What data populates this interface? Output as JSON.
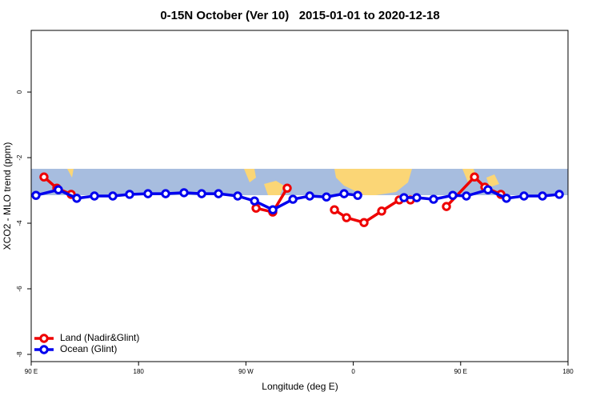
{
  "chart_data": {
    "type": "line",
    "title": "0-15N October (Ver 10)   2015-01-01 to 2020-12-18",
    "xlabel": "Longitude (deg E)",
    "ylabel": "XCO2 - MLO trend (ppm)",
    "xlim": [
      90,
      540
    ],
    "ylim": [
      -8.22,
      1.88
    ],
    "xticks": [
      {
        "value": 90,
        "label": "90 E"
      },
      180,
      {
        "value": 270,
        "label": "90 W"
      },
      {
        "value": 360,
        "label": "0"
      },
      {
        "value": 450,
        "label": "90 E"
      },
      {
        "value": 540,
        "label": "180"
      }
    ],
    "yticks": [
      0,
      -2,
      -4,
      -6,
      -8
    ],
    "legend": "bottom-left",
    "series": [
      {
        "name": "Land (Nadir&Glint)",
        "color": "#ee0000",
        "x": [
          100.7,
          111.5,
          123.5,
          null,
          278.5,
          292.5,
          304.6,
          null,
          344.2,
          354.3,
          369.0,
          383.8,
          398.5,
          407.9,
          null,
          438.1,
          461.6,
          470.3,
          483.7
        ],
        "values": [
          -2.59,
          -2.93,
          -3.12,
          null,
          -3.54,
          -3.66,
          -2.93,
          null,
          -3.59,
          -3.83,
          -3.98,
          -3.63,
          -3.29,
          -3.29,
          null,
          -3.49,
          -2.59,
          -2.9,
          -3.12
        ]
      },
      {
        "name": "Ocean (Glint)",
        "color": "#0000ee",
        "x": [
          94.0,
          112.8,
          128.2,
          143.0,
          158.4,
          172.5,
          187.9,
          202.7,
          218.1,
          232.9,
          247.0,
          263.1,
          277.2,
          292.6,
          309.4,
          323.5,
          337.5,
          352.3,
          363.7,
          null,
          402.5,
          413.2,
          427.3,
          443.4,
          454.8,
          472.9,
          488.4,
          503.1,
          518.6,
          532.7
        ],
        "values": [
          -3.15,
          -2.98,
          -3.24,
          -3.17,
          -3.17,
          -3.12,
          -3.1,
          -3.1,
          -3.07,
          -3.1,
          -3.1,
          -3.17,
          -3.32,
          -3.59,
          -3.27,
          -3.17,
          -3.2,
          -3.1,
          -3.15,
          null,
          -3.22,
          -3.22,
          -3.27,
          -3.15,
          -3.17,
          -2.98,
          -3.24,
          -3.17,
          -3.17,
          -3.12
        ]
      }
    ]
  }
}
